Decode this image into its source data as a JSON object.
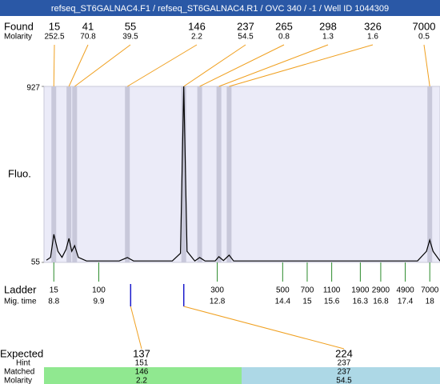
{
  "header": {
    "title": "refseq_ST6GALNAC4.F1 / refseq_ST6GALNAC4.R1 / OVC 340 / -1 / Well ID 1044309"
  },
  "chart_data": {
    "type": "line",
    "y_label": "Fluo.",
    "ylim": [
      55,
      927
    ],
    "yticks": [
      55,
      927
    ],
    "xlim": [
      8.56,
      18.25
    ],
    "x": [
      8.62,
      8.72,
      8.8,
      8.9,
      9.0,
      9.1,
      9.17,
      9.24,
      9.31,
      9.4,
      9.6,
      10.4,
      10.6,
      10.75,
      11.7,
      11.9,
      11.98,
      12.06,
      12.25,
      12.37,
      12.5,
      12.75,
      12.84,
      12.95,
      13.09,
      13.2,
      17.7,
      17.92,
      18.0,
      18.08,
      18.25
    ],
    "series": [
      {
        "color": "#000000",
        "values": [
          66,
          80,
          194,
          110,
          80,
          120,
          174,
          110,
          138,
          80,
          62,
          62,
          79,
          62,
          62,
          100,
          927,
          110,
          62,
          79,
          62,
          62,
          83,
          64,
          91,
          62,
          62,
          110,
          166,
          110,
          62
        ]
      }
    ],
    "found": {
      "label": "Found",
      "molarity_label": "Molarity",
      "sizes": [
        15,
        41,
        55,
        146,
        237,
        265,
        298,
        326,
        7000
      ],
      "molarities": [
        252.5,
        70.8,
        39.5,
        2.2,
        54.5,
        0.8,
        1.3,
        1.6,
        0.5
      ],
      "mig_times": [
        8.8,
        9.17,
        9.31,
        10.6,
        11.98,
        12.37,
        12.84,
        13.09,
        18.0
      ]
    },
    "ladder": {
      "label": "Ladder",
      "time_label": "Mig. time",
      "sizes": [
        15,
        100,
        300,
        500,
        700,
        1100,
        1900,
        2900,
        4900,
        7000
      ],
      "mig_times": [
        8.8,
        9.9,
        12.8,
        14.4,
        15,
        15.6,
        16.3,
        16.8,
        17.4,
        18
      ]
    },
    "expected": {
      "label": "Expected",
      "hint_label": "Hint",
      "matched_label": "Matched",
      "molarity_label": "Molarity",
      "sizes": [
        137,
        224
      ],
      "hints": [
        151,
        237
      ],
      "matched": [
        146,
        237
      ],
      "molarities": [
        2.2,
        54.5
      ],
      "mig_times": [
        10.68,
        11.98
      ]
    }
  }
}
